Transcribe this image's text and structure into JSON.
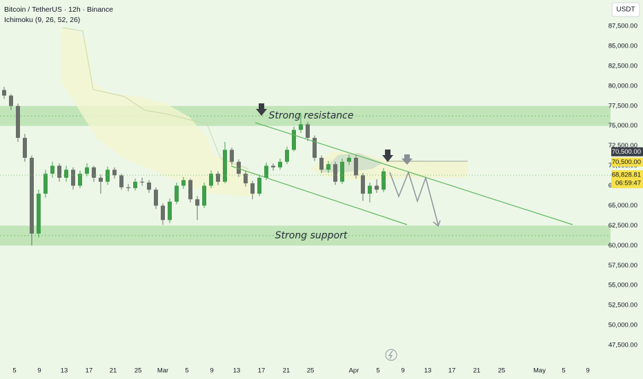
{
  "chart_data": {
    "type": "candlestick",
    "header": {
      "symbol": "Bitcoin / TetherUS · 12h · Binance",
      "indicator": "Ichimoku (9, 26, 52, 26)",
      "currency": "USDT"
    },
    "annotations": {
      "resistance": "Strong resistance",
      "support": "Strong support"
    },
    "resistance_zone": [
      75000,
      77500
    ],
    "support_zone": [
      60000,
      62500
    ],
    "up_color": "#3f9f4a",
    "down_color": "#6a6f6a",
    "open": [
      79500,
      78800,
      77500,
      73500,
      71000,
      61500,
      66500,
      69000,
      70000,
      68500,
      69500,
      67500,
      69000,
      69800,
      68500,
      68000,
      69500,
      68800,
      67300,
      67200,
      68000,
      67900,
      67000,
      65000,
      63200,
      65500,
      67500,
      68200,
      65800,
      65000,
      67500,
      69000,
      68000,
      72000,
      70500,
      69000,
      67800,
      66500,
      68500,
      70000,
      69800,
      70500,
      72000,
      74500,
      75200,
      73500,
      71000,
      69500,
      70200,
      68000,
      70500,
      71000,
      68800,
      66500,
      67500,
      67000
    ],
    "high": [
      79900,
      79000,
      77800,
      74000,
      71300,
      67000,
      69500,
      70500,
      70300,
      70000,
      69800,
      69400,
      70300,
      70000,
      68900,
      69900,
      69800,
      69000,
      67700,
      68400,
      68500,
      68200,
      67300,
      65300,
      65900,
      67900,
      68600,
      68400,
      66200,
      67900,
      69400,
      69300,
      73000,
      72300,
      70800,
      69300,
      68100,
      68900,
      70400,
      70300,
      70900,
      72400,
      74900,
      76600,
      75500,
      73800,
      71300,
      70600,
      70500,
      70900,
      71400,
      71300,
      69100,
      67900,
      68300,
      69700
    ],
    "low": [
      78400,
      77000,
      73000,
      70500,
      60000,
      61000,
      66000,
      68500,
      68000,
      68000,
      67000,
      67200,
      68700,
      68000,
      66500,
      67600,
      68400,
      67000,
      66800,
      66900,
      67500,
      66600,
      64600,
      62600,
      62800,
      65200,
      67100,
      65400,
      63200,
      64700,
      67200,
      67600,
      67800,
      70100,
      68600,
      67400,
      65800,
      66200,
      68200,
      69400,
      69500,
      70200,
      71800,
      74100,
      73100,
      70600,
      69100,
      69100,
      67600,
      67700,
      70100,
      68400,
      65600,
      65400,
      66600,
      66700
    ],
    "close": [
      78800,
      77500,
      73500,
      71000,
      61500,
      66500,
      69000,
      70000,
      68500,
      69500,
      67500,
      69000,
      69800,
      68500,
      68000,
      69500,
      68800,
      67300,
      67200,
      68000,
      67900,
      67000,
      65000,
      63200,
      65500,
      67500,
      68200,
      65800,
      65000,
      67500,
      69000,
      68000,
      72000,
      70500,
      69000,
      67800,
      66500,
      68500,
      70000,
      69800,
      70500,
      72000,
      74500,
      75200,
      73500,
      71000,
      69500,
      70200,
      68000,
      70500,
      71000,
      68800,
      66500,
      67500,
      67000,
      69300
    ],
    "x_labels": [
      "5",
      "9",
      "13",
      "17",
      "21",
      "25",
      "Mar",
      "5",
      "9",
      "13",
      "17",
      "21",
      "25",
      "Apr",
      "5",
      "9",
      "13",
      "17",
      "21",
      "25",
      "May",
      "5",
      "9"
    ],
    "ylim": [
      45000,
      90000
    ],
    "yticks": [
      {
        "value": 87500,
        "label": "87,500.00"
      },
      {
        "value": 85000,
        "label": "85,000.00"
      },
      {
        "value": 82500,
        "label": "82,500.00"
      },
      {
        "value": 80000,
        "label": "80,000.00"
      },
      {
        "value": 77500,
        "label": "77,500.00"
      },
      {
        "value": 75000,
        "label": "75,000.00"
      },
      {
        "value": 72500,
        "label": "72,500.00"
      },
      {
        "value": 70000,
        "label": "70,000.00"
      },
      {
        "value": 67500,
        "label": "67,500.00"
      },
      {
        "value": 65000,
        "label": "65,000.00"
      },
      {
        "value": 62500,
        "label": "62,500.00"
      },
      {
        "value": 60000,
        "label": "60,000.00"
      },
      {
        "value": 57500,
        "label": "57,500.00"
      },
      {
        "value": 55000,
        "label": "55,000.00"
      },
      {
        "value": 52500,
        "label": "52,500.00"
      },
      {
        "value": 50000,
        "label": "50,000.00"
      },
      {
        "value": 47500,
        "label": "47,500.00"
      }
    ],
    "price_labels": [
      {
        "value": 70500,
        "label": "70,500.00"
      },
      {
        "value": 68828.81,
        "label": "68,828.81"
      }
    ],
    "countdown": "06:59:47"
  }
}
